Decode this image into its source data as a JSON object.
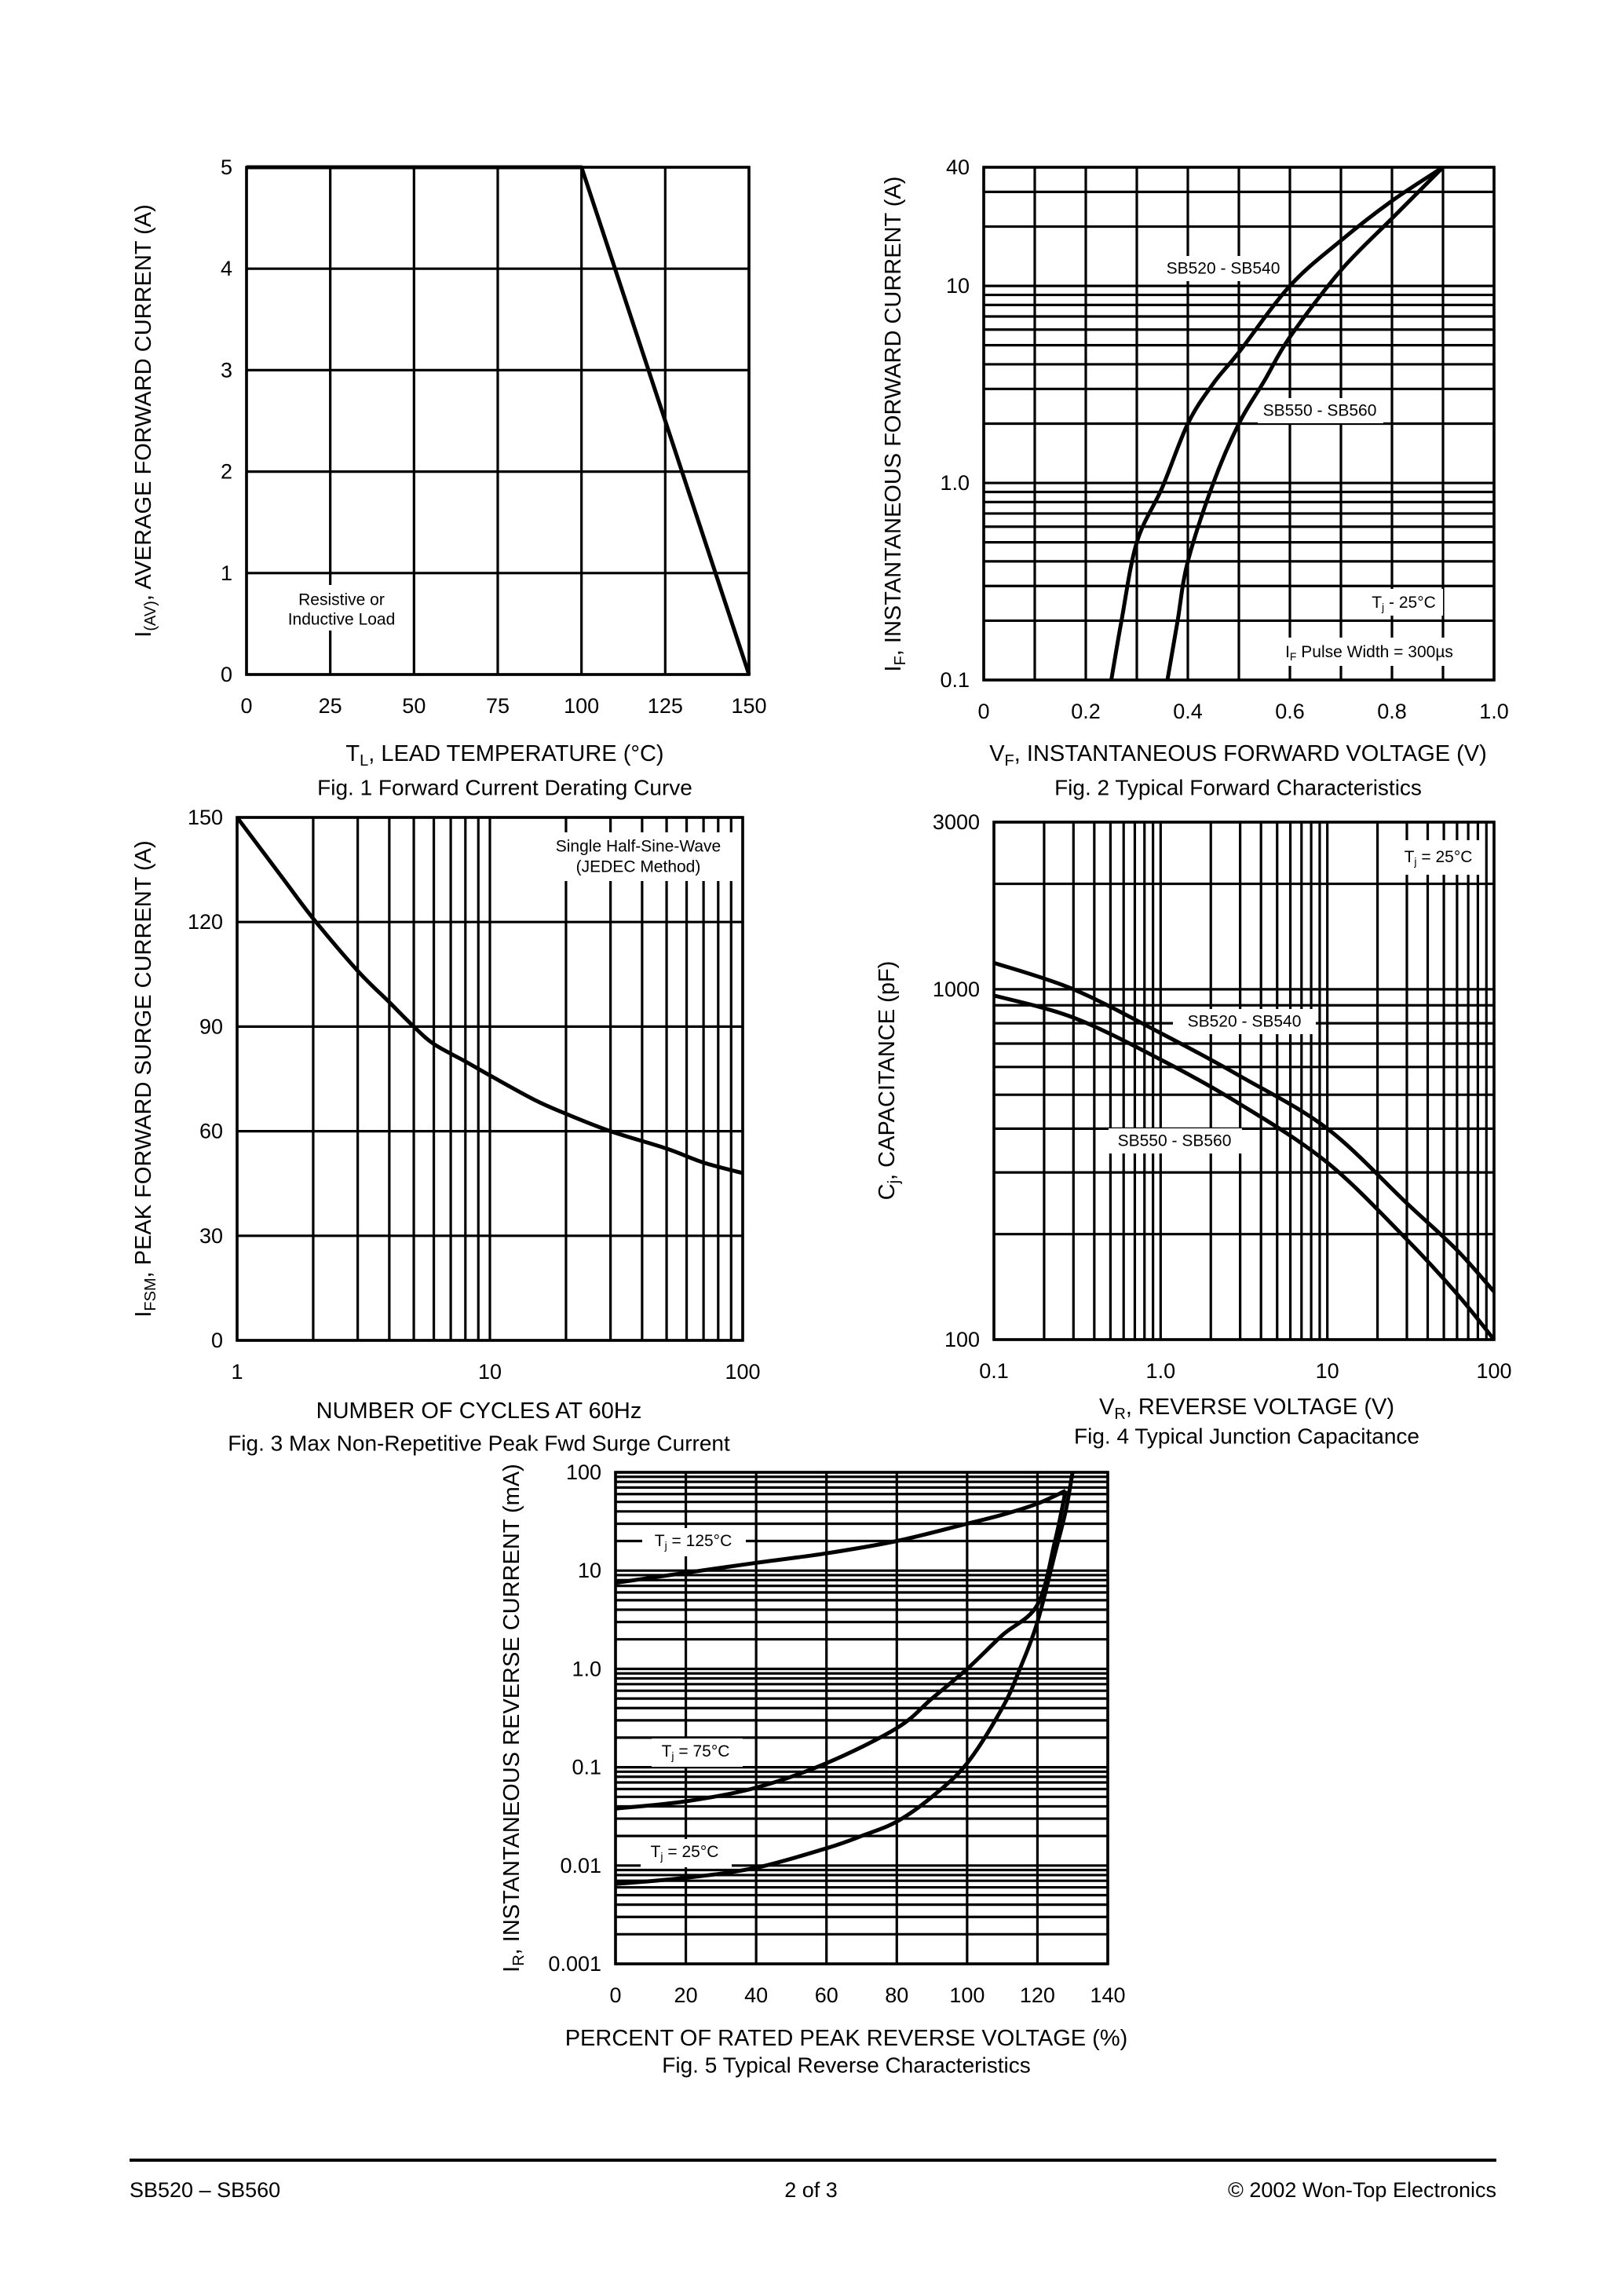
{
  "chart_data": [
    {
      "type": "line",
      "caption": "Fig. 1  Forward Current Derating Curve",
      "xlabel": [
        {
          "t": "T"
        },
        {
          "t": "L",
          "sub": true
        },
        {
          "t": ",  LEAD TEMPERATURE (°C)"
        }
      ],
      "ylabel": [
        {
          "t": "I"
        },
        {
          "t": "(AV)",
          "sub": true
        },
        {
          "t": ", AVERAGE FORWARD CURRENT (A)"
        }
      ],
      "xscale": "linear",
      "yscale": "linear",
      "xlim": [
        0,
        150
      ],
      "ylim": [
        0,
        5
      ],
      "grid": true,
      "xticks": [
        0,
        25,
        50,
        75,
        100,
        125,
        150
      ],
      "xtick_labels": [
        "0",
        "25",
        "50",
        "75",
        "100",
        "125",
        "150"
      ],
      "yticks": [
        0,
        1,
        2,
        3,
        4,
        5
      ],
      "ytick_labels": [
        "0",
        "1",
        "2",
        "3",
        "4",
        "5"
      ],
      "annotations": [
        {
          "text": "Resistive or"
        },
        {
          "text": "Inductive Load"
        }
      ],
      "series": [
        {
          "x": [
            0,
            100,
            150
          ],
          "y": [
            5,
            5,
            0
          ]
        }
      ]
    },
    {
      "type": "line",
      "caption": "Fig. 2  Typical Forward Characteristics",
      "xlabel": [
        {
          "t": "V"
        },
        {
          "t": "F",
          "sub": true
        },
        {
          "t": ", INSTANTANEOUS FORWARD VOLTAGE (V)"
        }
      ],
      "ylabel": [
        {
          "t": "I"
        },
        {
          "t": "F",
          "sub": true
        },
        {
          "t": ", INSTANTANEOUS FORWARD CURRENT (A)"
        }
      ],
      "xscale": "linear",
      "yscale": "log",
      "xlim": [
        0,
        1.0
      ],
      "ylim": [
        0.1,
        40
      ],
      "grid": true,
      "xticks": [
        0,
        0.2,
        0.4,
        0.6,
        0.8,
        1.0
      ],
      "xtick_labels": [
        "0",
        "0.2",
        "0.4",
        "0.6",
        "0.8",
        "1.0"
      ],
      "yticks": [
        0.1,
        1,
        10,
        40
      ],
      "ytick_labels": [
        "0.1",
        "1.0",
        "10",
        "40"
      ],
      "annotations": [
        {
          "text": "SB520 - SB540"
        },
        {
          "text": "SB550 - SB560"
        },
        {
          "parts": [
            {
              "t": "T"
            },
            {
              "t": "j",
              "sub": true
            },
            {
              "t": " - 25°C"
            }
          ]
        },
        {
          "parts": [
            {
              "t": "I"
            },
            {
              "t": "F",
              "sub": true
            },
            {
              "t": " Pulse Width = 300µs"
            }
          ]
        }
      ],
      "series": [
        {
          "name": "SB520 - SB540",
          "x": [
            0.25,
            0.27,
            0.3,
            0.35,
            0.4,
            0.45,
            0.5,
            0.6,
            0.7,
            0.8,
            0.9
          ],
          "y": [
            0.1,
            0.2,
            0.5,
            0.95,
            2,
            3.2,
            4.6,
            10,
            17,
            27,
            40
          ]
        },
        {
          "name": "SB550 - SB560",
          "x": [
            0.36,
            0.38,
            0.4,
            0.45,
            0.5,
            0.55,
            0.6,
            0.7,
            0.8,
            0.9
          ],
          "y": [
            0.1,
            0.2,
            0.4,
            1.0,
            2,
            3.3,
            5.5,
            12,
            22,
            40
          ]
        }
      ]
    },
    {
      "type": "line",
      "caption": "Fig. 3  Max Non-Repetitive Peak Fwd Surge Current",
      "xlabel": [
        {
          "t": "NUMBER OF CYCLES AT 60Hz"
        }
      ],
      "ylabel": [
        {
          "t": "I"
        },
        {
          "t": "FSM",
          "sub": true
        },
        {
          "t": ", PEAK FORWARD SURGE CURRENT (A)"
        }
      ],
      "xscale": "log",
      "yscale": "linear",
      "xlim": [
        1,
        100
      ],
      "ylim": [
        0,
        150
      ],
      "grid": true,
      "xticks": [
        1,
        10,
        100
      ],
      "xtick_labels": [
        "1",
        "10",
        "100"
      ],
      "yticks": [
        0,
        30,
        60,
        90,
        120,
        150
      ],
      "ytick_labels": [
        "0",
        "30",
        "60",
        "90",
        "120",
        "150"
      ],
      "annotations": [
        {
          "text": "Single Half-Sine-Wave"
        },
        {
          "text": "(JEDEC Method)"
        }
      ],
      "series": [
        {
          "x": [
            1,
            1.5,
            2,
            3,
            4,
            5,
            6,
            8,
            10,
            15,
            20,
            30,
            50,
            70,
            100
          ],
          "y": [
            150,
            133,
            121,
            106,
            97,
            90,
            85,
            80,
            76,
            69,
            65,
            60,
            55,
            51,
            48
          ]
        }
      ]
    },
    {
      "type": "line",
      "caption": "Fig. 4  Typical Junction Capacitance",
      "xlabel": [
        {
          "t": "V"
        },
        {
          "t": "R",
          "sub": true
        },
        {
          "t": ", REVERSE VOLTAGE (V)"
        }
      ],
      "ylabel": [
        {
          "t": "C"
        },
        {
          "t": "j",
          "sub": true
        },
        {
          "t": ", CAPACITANCE (pF)"
        }
      ],
      "xscale": "log",
      "yscale": "log",
      "xlim": [
        0.1,
        100
      ],
      "ylim": [
        100,
        3000
      ],
      "grid": true,
      "xticks": [
        0.1,
        1,
        10,
        100
      ],
      "xtick_labels": [
        "0.1",
        "1.0",
        "10",
        "100"
      ],
      "yticks": [
        100,
        1000,
        3000
      ],
      "ytick_labels": [
        "100",
        "1000",
        "3000"
      ],
      "annotations": [
        {
          "parts": [
            {
              "t": "T"
            },
            {
              "t": "j",
              "sub": true
            },
            {
              "t": " = 25°C"
            }
          ]
        },
        {
          "text": "SB520 - SB540"
        },
        {
          "text": "SB550 - SB560"
        }
      ],
      "series": [
        {
          "name": "SB520 - SB540",
          "x": [
            0.1,
            0.3,
            1,
            3,
            10,
            30,
            60,
            100
          ],
          "y": [
            1190,
            1000,
            750,
            565,
            400,
            245,
            180,
            137
          ]
        },
        {
          "name": "SB550 - SB560",
          "x": [
            0.1,
            0.3,
            1,
            3,
            10,
            30,
            60,
            100
          ],
          "y": [
            960,
            830,
            630,
            470,
            320,
            193,
            135,
            100
          ]
        }
      ]
    },
    {
      "type": "line",
      "caption": "Fig. 5  Typical Reverse Characteristics",
      "xlabel": [
        {
          "t": "PERCENT OF RATED PEAK REVERSE VOLTAGE (%)"
        }
      ],
      "ylabel": [
        {
          "t": "I"
        },
        {
          "t": "R",
          "sub": true
        },
        {
          "t": ", INSTANTANEOUS REVERSE CURRENT (mA)"
        }
      ],
      "xscale": "linear",
      "yscale": "log",
      "xlim": [
        0,
        140
      ],
      "ylim": [
        0.001,
        100
      ],
      "grid": true,
      "xticks": [
        0,
        20,
        40,
        60,
        80,
        100,
        120,
        140
      ],
      "xtick_labels": [
        "0",
        "20",
        "40",
        "60",
        "80",
        "100",
        "120",
        "140"
      ],
      "yticks": [
        0.001,
        0.01,
        0.1,
        1,
        10,
        100
      ],
      "ytick_labels": [
        "0.001",
        "0.01",
        "0.1",
        "1.0",
        "10",
        "100"
      ],
      "annotations": [
        {
          "parts": [
            {
              "t": "T"
            },
            {
              "t": "j",
              "sub": true
            },
            {
              "t": " = 125°C"
            }
          ]
        },
        {
          "parts": [
            {
              "t": "T"
            },
            {
              "t": "j",
              "sub": true
            },
            {
              "t": " = 75°C"
            }
          ]
        },
        {
          "parts": [
            {
              "t": "T"
            },
            {
              "t": "j",
              "sub": true
            },
            {
              "t": " = 25°C"
            }
          ]
        }
      ],
      "series": [
        {
          "name": "Tj = 125°C",
          "x": [
            0,
            20,
            40,
            60,
            80,
            100,
            110,
            120,
            128
          ],
          "y": [
            7.5,
            9.5,
            12,
            15,
            20,
            30,
            37,
            48,
            65
          ]
        },
        {
          "name": "Tj = 75°C",
          "x": [
            0,
            20,
            40,
            60,
            80,
            90,
            100,
            110,
            120,
            125,
            128
          ],
          "y": [
            0.038,
            0.045,
            0.062,
            0.11,
            0.25,
            0.5,
            1.0,
            2.2,
            4.5,
            20,
            65
          ]
        },
        {
          "name": "Tj = 25°C",
          "x": [
            0,
            20,
            40,
            60,
            70,
            80,
            90,
            100,
            110,
            115,
            120,
            125,
            128,
            130
          ],
          "y": [
            0.0065,
            0.0075,
            0.0095,
            0.015,
            0.02,
            0.028,
            0.05,
            0.11,
            0.4,
            1,
            3,
            15,
            40,
            100
          ]
        }
      ]
    }
  ],
  "footer": {
    "left": "SB520 – SB560",
    "center": "2  of  3",
    "right": "© 2002 Won-Top Electronics"
  }
}
